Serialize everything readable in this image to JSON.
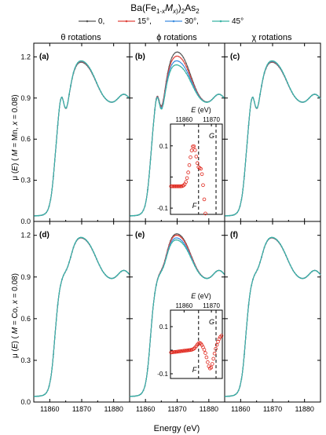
{
  "figure": {
    "formula": "Ba(Fe1-xMx)2As2",
    "column_titles": [
      "θ rotations",
      "ϕ rotations",
      "χ rotations"
    ],
    "ylabel_top": "μ (E) ( M = Mn, x = 0.08)",
    "ylabel_bottom": "μ (E) ( M = Co, x = 0.08)",
    "xlabel": "Energy (eV)",
    "panel_labels": [
      "(a)",
      "(b)",
      "(c)",
      "(d)",
      "(e)",
      "(f)"
    ]
  },
  "chart_data": [
    {
      "type": "line",
      "panel": "(a)",
      "xlim": [
        11855,
        11885
      ],
      "ylim": [
        0.0,
        1.3
      ],
      "xticks": [
        11860,
        11870,
        11880
      ],
      "yticks": [
        0.0,
        0.3,
        0.6,
        0.9,
        1.2
      ],
      "series": [
        {
          "name": "0",
          "color": "#555555",
          "spread": 0.0
        },
        {
          "name": "15°",
          "color": "#e0443c",
          "spread": 0.005
        },
        {
          "name": "30°",
          "color": "#3e8ee0",
          "spread": 0.008
        },
        {
          "name": "45°",
          "color": "#39b3a4",
          "spread": 0.01
        }
      ],
      "profile": "Mn"
    },
    {
      "type": "line",
      "panel": "(b)",
      "xlim": [
        11855,
        11885
      ],
      "ylim": [
        0.0,
        1.3
      ],
      "xticks": [
        11860,
        11870,
        11880
      ],
      "series": [
        {
          "name": "0",
          "color": "#555555",
          "spread": 0.075
        },
        {
          "name": "15°",
          "color": "#e0443c",
          "spread": 0.045
        },
        {
          "name": "30°",
          "color": "#3e8ee0",
          "spread": 0.01
        },
        {
          "name": "45°",
          "color": "#39b3a4",
          "spread": -0.02
        }
      ],
      "profile": "Mn",
      "inset": {
        "xlabel": "E (eV)",
        "xlim": [
          11855,
          11874
        ],
        "ylim": [
          -0.12,
          0.17
        ],
        "xticks": [
          11860,
          11870
        ],
        "yticks": [
          -0.1,
          0.0,
          0.1
        ],
        "markers": [
          "F",
          "G"
        ],
        "marker_x": [
          11865.3,
          11871.7
        ],
        "profile": "Mn"
      }
    },
    {
      "type": "line",
      "panel": "(c)",
      "xlim": [
        11855,
        11885
      ],
      "ylim": [
        0.0,
        1.3
      ],
      "xticks": [
        11860,
        11870,
        11880
      ],
      "series": [
        {
          "name": "0",
          "color": "#555555",
          "spread": 0.0
        },
        {
          "name": "15°",
          "color": "#e0443c",
          "spread": 0.004
        },
        {
          "name": "30°",
          "color": "#3e8ee0",
          "spread": 0.007
        },
        {
          "name": "45°",
          "color": "#39b3a4",
          "spread": 0.01
        }
      ],
      "profile": "Mn"
    },
    {
      "type": "line",
      "panel": "(d)",
      "xlim": [
        11855,
        11885
      ],
      "ylim": [
        0.0,
        1.3
      ],
      "xticks": [
        11860,
        11870,
        11880
      ],
      "yticks": [
        0.0,
        0.3,
        0.6,
        0.9,
        1.2
      ],
      "series": [
        {
          "name": "0",
          "color": "#555555",
          "spread": 0.0
        },
        {
          "name": "15°",
          "color": "#e0443c",
          "spread": 0.002
        },
        {
          "name": "30°",
          "color": "#3e8ee0",
          "spread": 0.003
        },
        {
          "name": "45°",
          "color": "#39b3a4",
          "spread": 0.004
        }
      ],
      "profile": "Co"
    },
    {
      "type": "line",
      "panel": "(e)",
      "xlim": [
        11855,
        11885
      ],
      "ylim": [
        0.0,
        1.3
      ],
      "xticks": [
        11860,
        11870,
        11880
      ],
      "series": [
        {
          "name": "0",
          "color": "#555555",
          "spread": 0.03
        },
        {
          "name": "15°",
          "color": "#e0443c",
          "spread": 0.02
        },
        {
          "name": "30°",
          "color": "#3e8ee0",
          "spread": 0.0
        },
        {
          "name": "45°",
          "color": "#39b3a4",
          "spread": -0.015
        }
      ],
      "profile": "Co",
      "inset": {
        "xlabel": "E (eV)",
        "xlim": [
          11855,
          11874
        ],
        "ylim": [
          -0.12,
          0.17
        ],
        "xticks": [
          11860,
          11870
        ],
        "yticks": [
          -0.1,
          0.0,
          0.1
        ],
        "markers": [
          "F",
          "G"
        ],
        "marker_x": [
          11865.3,
          11871.7
        ],
        "profile": "Co"
      }
    },
    {
      "type": "line",
      "panel": "(f)",
      "xlim": [
        11855,
        11885
      ],
      "ylim": [
        0.0,
        1.3
      ],
      "xticks": [
        11860,
        11870,
        11880
      ],
      "series": [
        {
          "name": "0",
          "color": "#555555",
          "spread": 0.0
        },
        {
          "name": "15°",
          "color": "#e0443c",
          "spread": 0.002
        },
        {
          "name": "30°",
          "color": "#3e8ee0",
          "spread": 0.003
        },
        {
          "name": "45°",
          "color": "#39b3a4",
          "spread": 0.004
        }
      ],
      "profile": "Co"
    }
  ],
  "legend": {
    "placement": "top-center",
    "entries": [
      "0",
      "15°",
      "30°",
      "45°"
    ]
  }
}
